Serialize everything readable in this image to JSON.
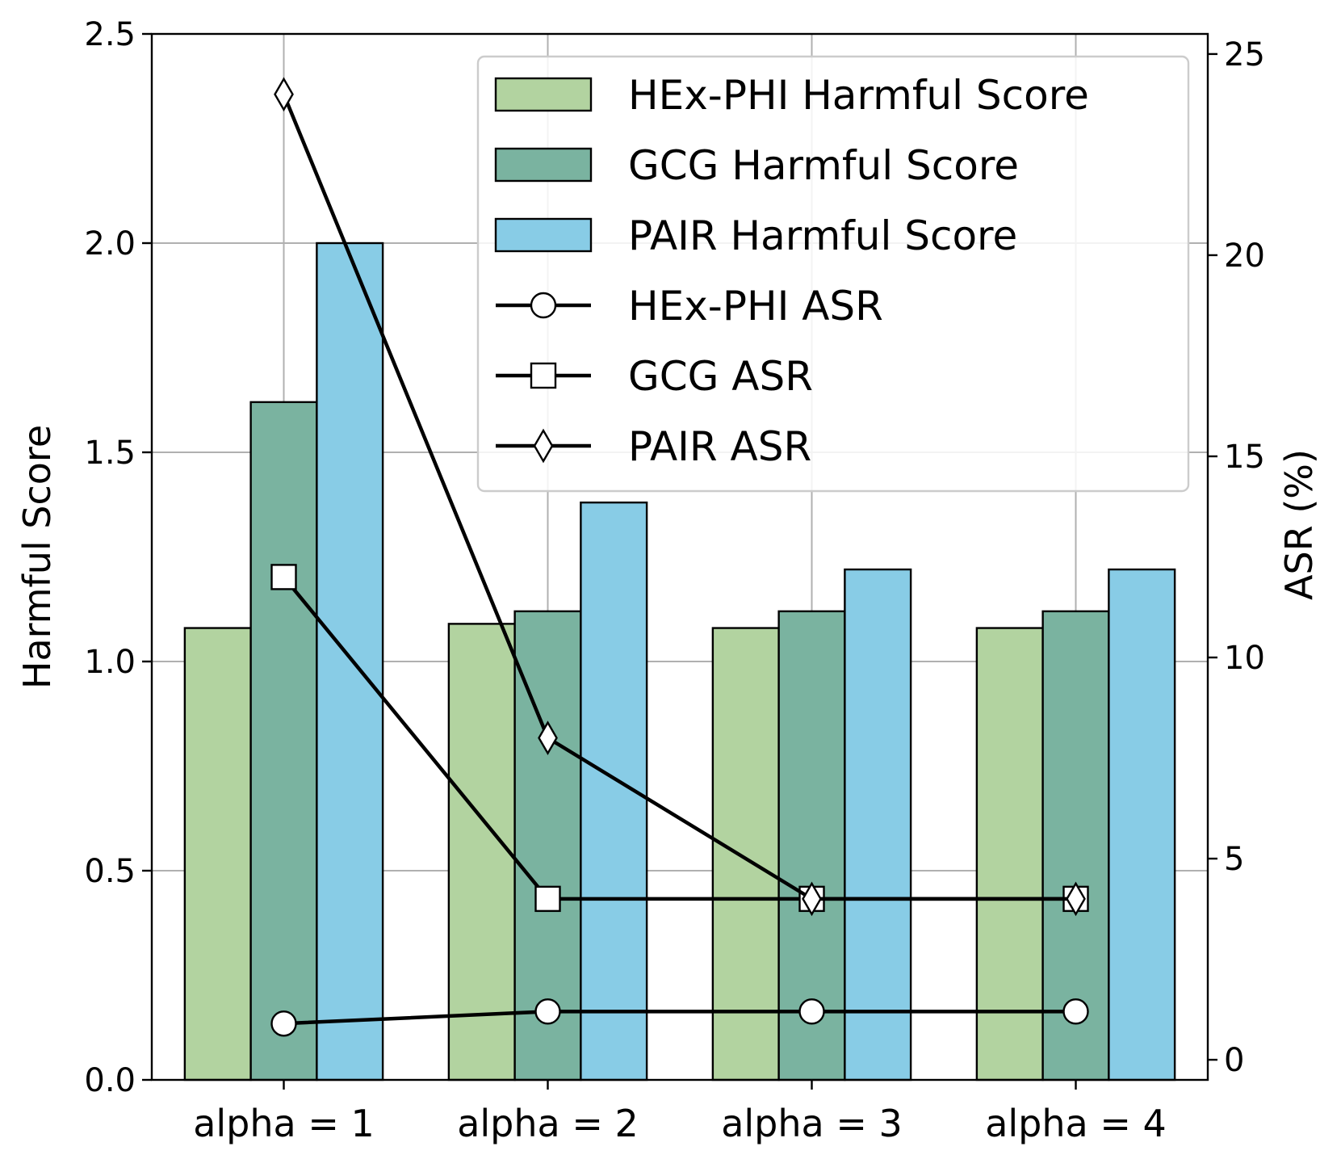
{
  "chart_data": {
    "type": "bar",
    "title": "",
    "categories": [
      "alpha = 1",
      "alpha = 2",
      "alpha = 3",
      "alpha = 4"
    ],
    "ylabel": "Harmful Score",
    "y2label": "ASR (%)",
    "ylim": [
      0,
      2.5
    ],
    "y2lim": [
      -0.5,
      25.5
    ],
    "yticks": [
      "0.0",
      "0.5",
      "1.0",
      "1.5",
      "2.0",
      "2.5"
    ],
    "y2ticks": [
      "0",
      "5",
      "10",
      "15",
      "20",
      "25"
    ],
    "grid": true,
    "legend_position": "top-right",
    "series": [
      {
        "name": "HEx-PHI Harmful Score",
        "kind": "bar",
        "axis": "left",
        "color": "#b2d3a0",
        "values": [
          1.08,
          1.09,
          1.08,
          1.08
        ]
      },
      {
        "name": "GCG Harmful Score",
        "kind": "bar",
        "axis": "left",
        "color": "#7ab3a0",
        "values": [
          1.62,
          1.12,
          1.12,
          1.12
        ]
      },
      {
        "name": "PAIR Harmful Score",
        "kind": "bar",
        "axis": "left",
        "color": "#88cce6",
        "values": [
          2.0,
          1.38,
          1.22,
          1.22
        ]
      },
      {
        "name": "HEx-PHI ASR",
        "kind": "line",
        "axis": "right",
        "marker": "circle",
        "values": [
          0.9,
          1.2,
          1.2,
          1.2
        ]
      },
      {
        "name": "GCG ASR",
        "kind": "line",
        "axis": "right",
        "marker": "square",
        "values": [
          12.0,
          4.0,
          4.0,
          4.0
        ]
      },
      {
        "name": "PAIR ASR",
        "kind": "line",
        "axis": "right",
        "marker": "diamond",
        "values": [
          24.0,
          8.0,
          4.0,
          4.0
        ]
      }
    ]
  }
}
